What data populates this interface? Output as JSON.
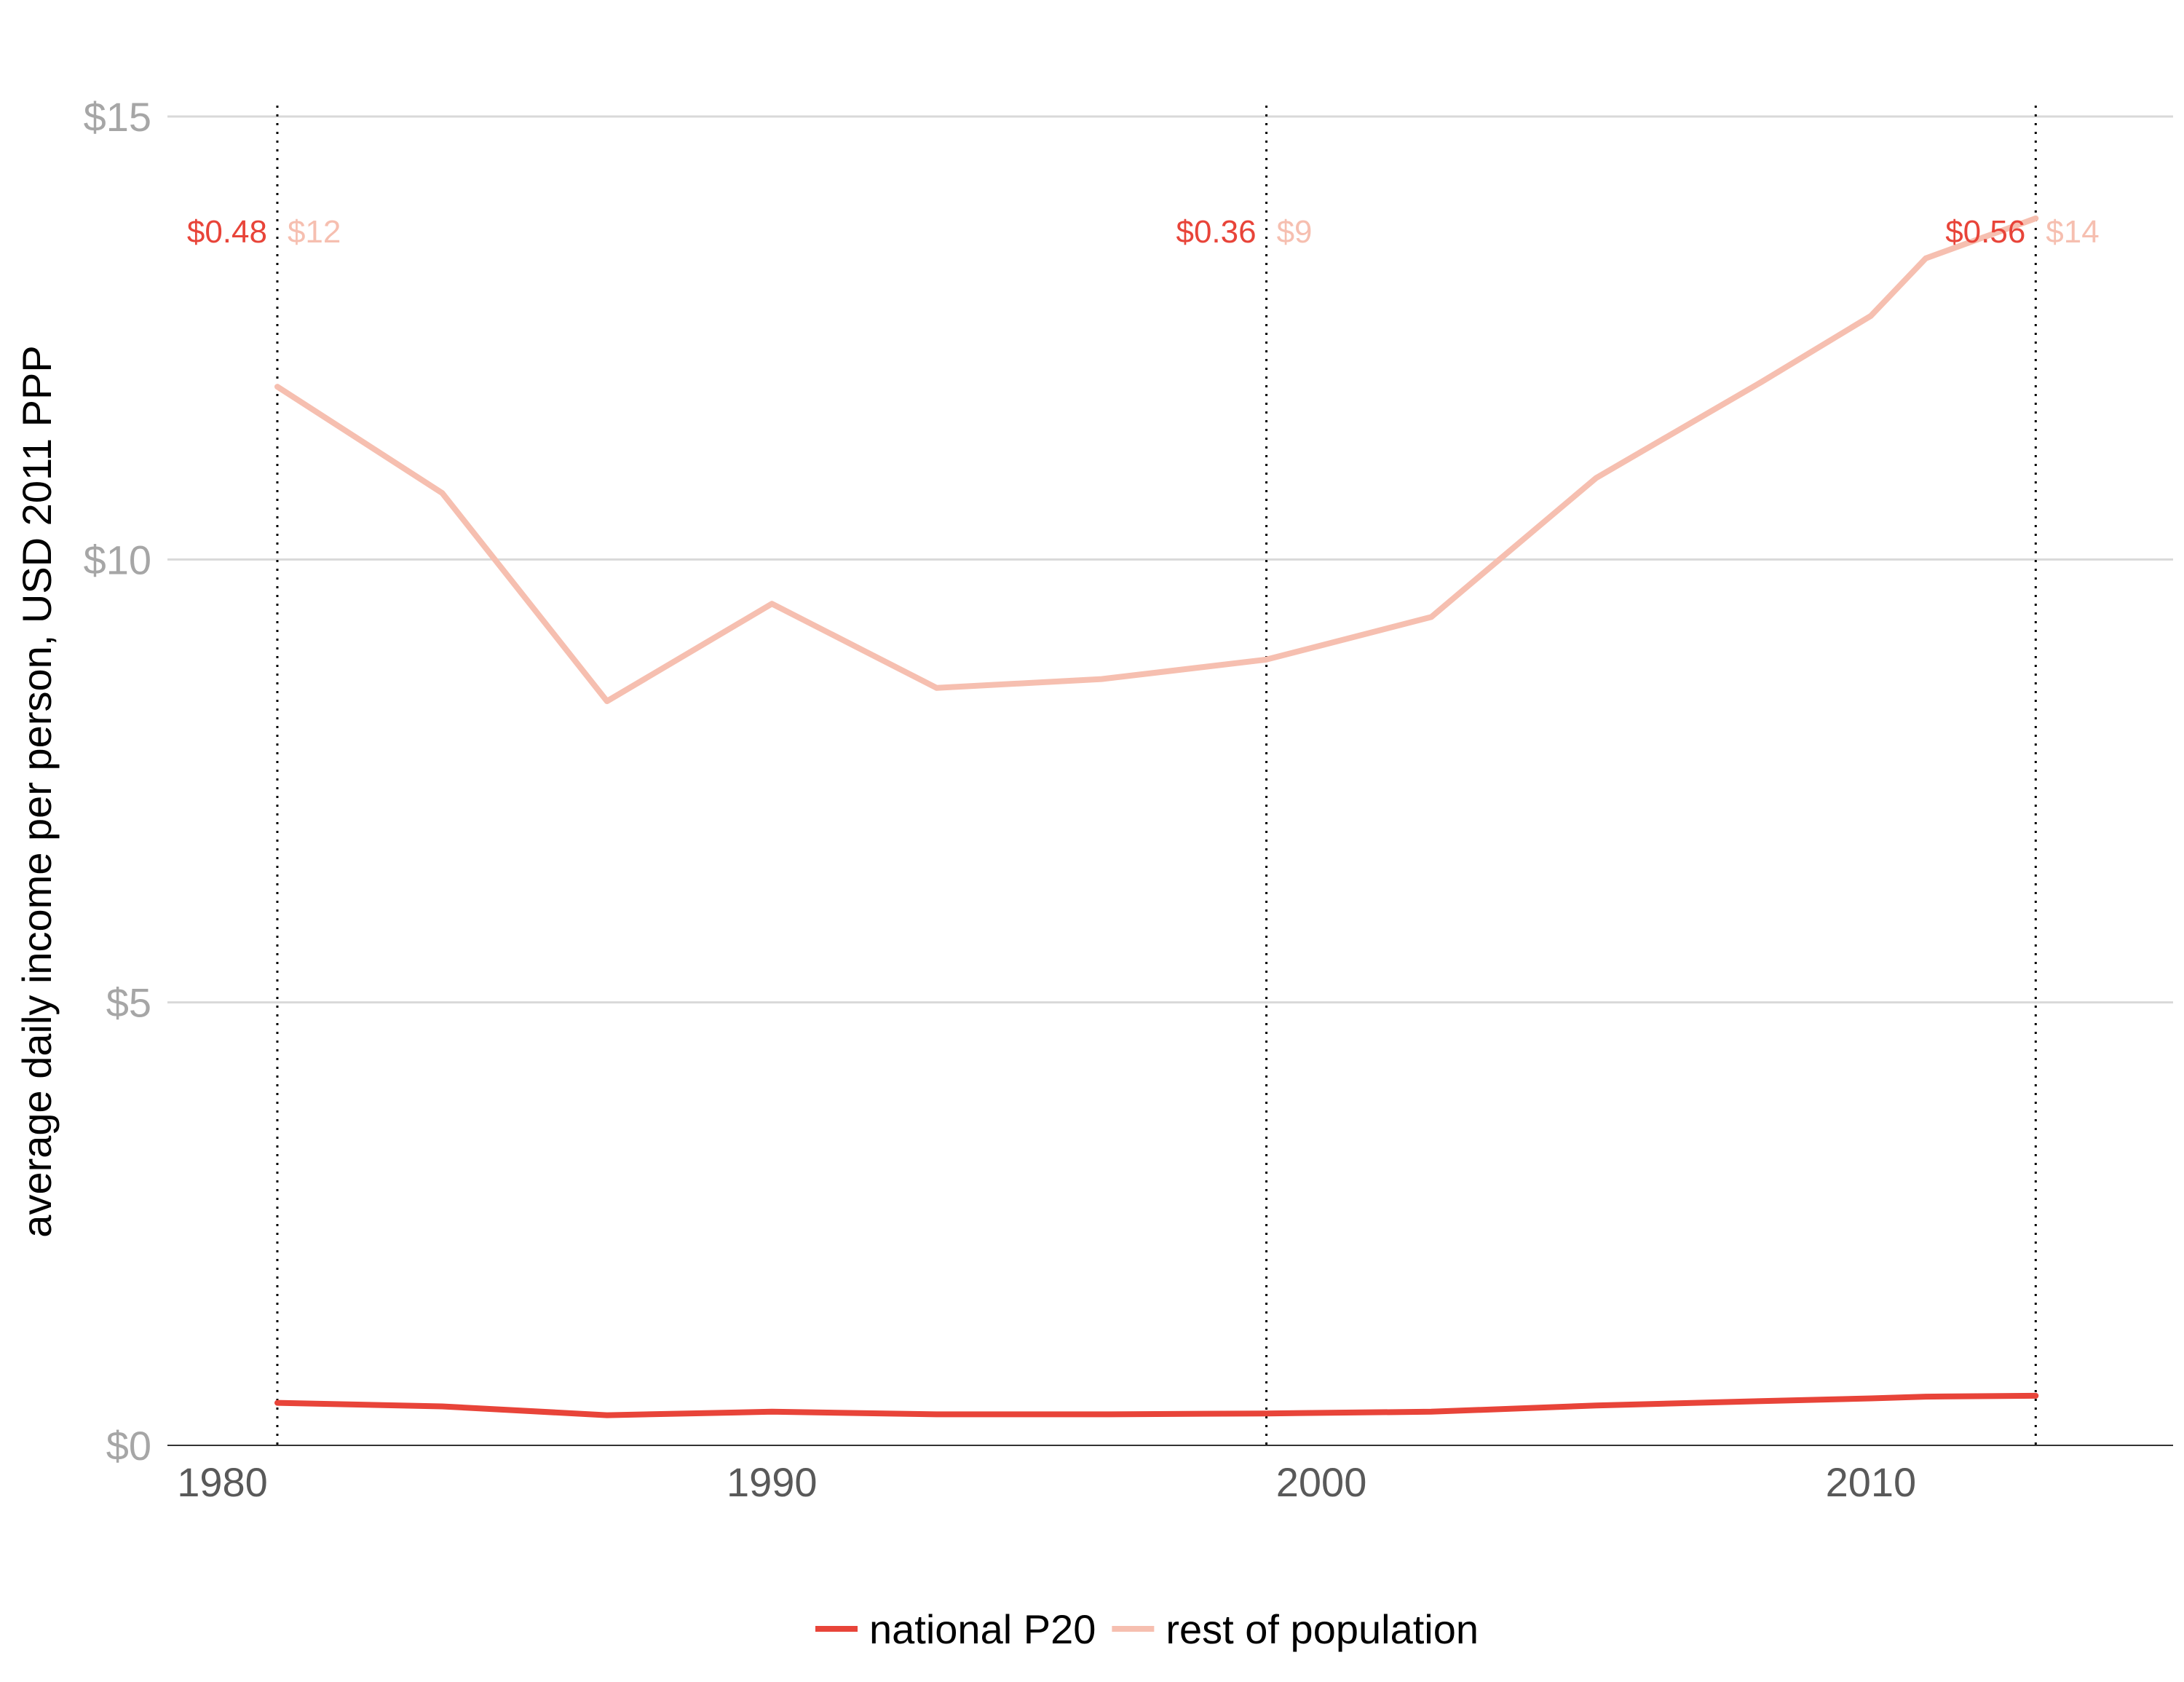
{
  "chart_data": {
    "type": "line",
    "title": "",
    "xlabel": "",
    "ylabel": "average daily income per person, USD 2011 PPP",
    "xlim": [
      1979,
      2015.5
    ],
    "ylim": [
      0,
      15
    ],
    "x_ticks": [
      1980,
      1990,
      2000,
      2010
    ],
    "x_tick_labels": [
      "1980",
      "1990",
      "2000",
      "2010"
    ],
    "y_ticks": [
      0,
      5,
      10,
      15
    ],
    "y_tick_labels": [
      "$0",
      "$5",
      "$10",
      "$15"
    ],
    "grid": "horizontal",
    "legend_position": "bottom",
    "series": [
      {
        "name": "national P20",
        "color": "#e84439",
        "x": [
          1981,
          1984,
          1987,
          1990,
          1993,
          1996,
          1999,
          2002,
          2005,
          2008,
          2010,
          2011,
          2013
        ],
        "y": [
          0.48,
          0.44,
          0.34,
          0.38,
          0.35,
          0.35,
          0.36,
          0.38,
          0.45,
          0.5,
          0.53,
          0.55,
          0.56
        ]
      },
      {
        "name": "rest of population",
        "color": "#f6bfb0",
        "x": [
          1981,
          1984,
          1987,
          1990,
          1993,
          1996,
          1999,
          2002,
          2005,
          2008,
          2010,
          2011,
          2013
        ],
        "y": [
          11.95,
          10.75,
          8.4,
          9.5,
          8.55,
          8.65,
          8.87,
          9.35,
          10.92,
          12.0,
          12.75,
          13.4,
          13.85
        ]
      }
    ],
    "reference_lines": [
      {
        "x": 1981,
        "p20_label": "$0.48",
        "rest_label": "$12"
      },
      {
        "x": 1999,
        "p20_label": "$0.36",
        "rest_label": "$9"
      },
      {
        "x": 2013,
        "p20_label": "$0.56",
        "rest_label": "$14"
      }
    ]
  }
}
